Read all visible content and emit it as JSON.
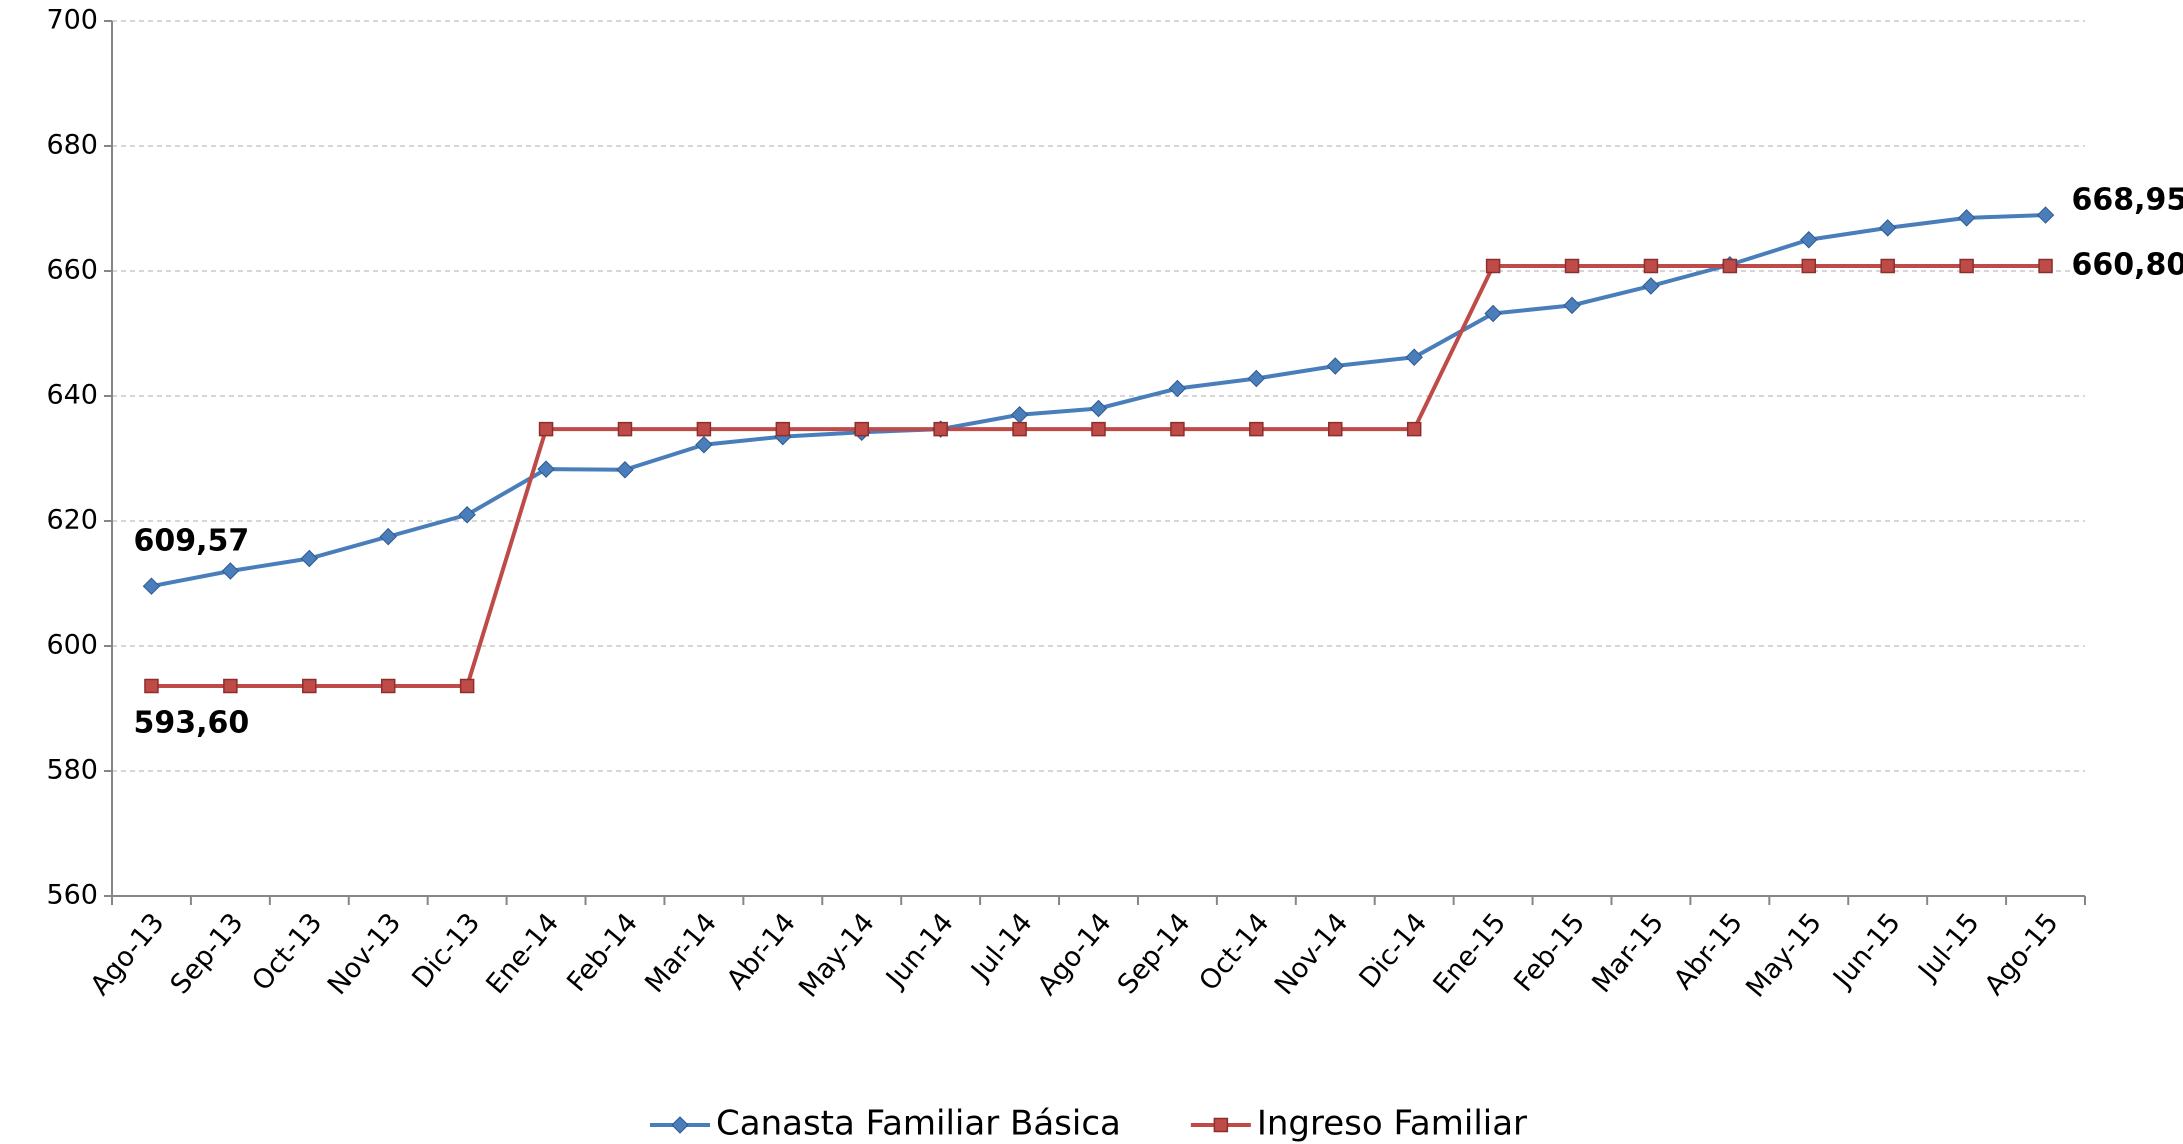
{
  "chart_data": {
    "type": "line",
    "categories": [
      "Ago-13",
      "Sep-13",
      "Oct-13",
      "Nov-13",
      "Dic-13",
      "Ene-14",
      "Feb-14",
      "Mar-14",
      "Abr-14",
      "May-14",
      "Jun-14",
      "Jul-14",
      "Ago-14",
      "Sep-14",
      "Oct-14",
      "Nov-14",
      "Dic-14",
      "Ene-15",
      "Feb-15",
      "Mar-15",
      "Abr-15",
      "May-15",
      "Jun-15",
      "Jul-15",
      "Ago-15"
    ],
    "series": [
      {
        "name": "Canasta Familiar Básica",
        "color": "#4a7ebb",
        "marker": "diamond",
        "values": [
          609.57,
          612,
          614,
          617.5,
          621,
          628.3,
          628.2,
          632.2,
          633.5,
          634.2,
          634.7,
          637,
          638,
          641.2,
          642.8,
          644.8,
          646.2,
          653.2,
          654.5,
          657.6,
          661,
          665,
          666.9,
          668.5,
          668.95
        ],
        "value_labels": [
          "609,57",
          null,
          null,
          null,
          null,
          null,
          null,
          null,
          null,
          null,
          null,
          null,
          null,
          null,
          null,
          null,
          null,
          null,
          null,
          null,
          null,
          null,
          null,
          null,
          "668,95"
        ]
      },
      {
        "name": "Ingreso Familiar",
        "color": "#be4b48",
        "marker": "square",
        "values": [
          593.6,
          593.6,
          593.6,
          593.6,
          593.6,
          634.7,
          634.7,
          634.7,
          634.7,
          634.7,
          634.7,
          634.7,
          634.7,
          634.7,
          634.7,
          634.7,
          634.7,
          660.8,
          660.8,
          660.8,
          660.8,
          660.8,
          660.8,
          660.8,
          660.8
        ],
        "value_labels": [
          "593,60",
          null,
          null,
          null,
          null,
          null,
          null,
          null,
          null,
          null,
          null,
          null,
          null,
          null,
          null,
          null,
          null,
          null,
          null,
          null,
          null,
          null,
          null,
          null,
          "660,80"
        ]
      }
    ],
    "ylim": [
      560,
      700
    ],
    "yticks": [
      560,
      580,
      600,
      620,
      640,
      660,
      680,
      700
    ],
    "grid": true,
    "legend": "bottom"
  }
}
